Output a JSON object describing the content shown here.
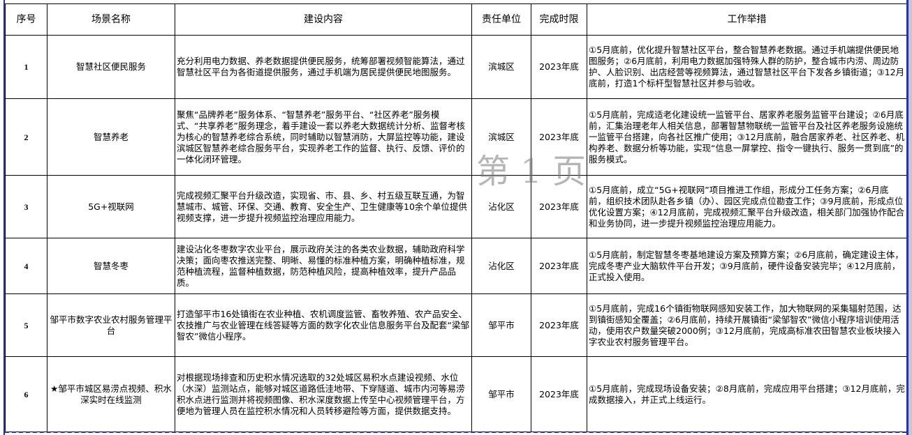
{
  "table": {
    "headers": [
      "序号",
      "场景名称",
      "建设内容",
      "责任单位",
      "完成时限",
      "工作举措"
    ],
    "rows": [
      {
        "no": "1",
        "name": "智慧社区便民服务",
        "content": "充分利用电力数据、养老数据提供便民服务，统筹部署视频智能算法，通过智慧社区平台为各街道提供服务，通过手机端为居民提供便民地图服务。",
        "unit": "滨城区",
        "deadline": "2023年底",
        "measures": "①5月底前，优化提升智慧社区平台，整合智慧养老数据。通过手机端提供便民地图服务；②6月底前，利用电力数据加强特殊人群的防护，整合城市内涝、周边防护、人脸识别、出店经营等视频算法，通过智慧社区平台下发各乡镇街道；③12月底前，打造1个标杆型智慧社区并参与验收。"
      },
      {
        "no": "2",
        "name": "智慧养老",
        "content": "聚焦“品牌养老”服务体系、“智慧养老”服务平台、“社区养老”服务模式、“共享养老”服务理念，着手建设一套以养老大数据统计分析、监督考核为核心的智慧养老综合系统，同时辅助以智慧消防，大屏监控等功能，建设滨城区智慧养老综合服务平台，实现养老工作的监督、执行、反馈、评价的一体化闭环管理。",
        "unit": "滨城区",
        "deadline": "2023年底",
        "measures": "①5月底前，完成适老化建设统一监管平台、居家养老服务监管平台建设；②6月底前，汇集治理老年人相关信息，部署智慧物联统一监管平台及社区养老服务设施统一监管平台搭建，向各社区推广使用；③12月底前，融合居家养老、社区养老、机构养老、数据分析等功能，实现“信息一屏掌控、指令一键执行、服务一贯到底”的服务模式。"
      },
      {
        "no": "3",
        "name": "5G+视联网",
        "content": "完成视频汇聚平台升级改造，实现省、市、县、乡、村五级互联互通，为智慧城市、城管、环保、交通、教育、安全生产、卫生健康等10余个单位提供视频支撑，进一步提升视频监控治理应用能力。",
        "unit": "沾化区",
        "deadline": "2023年底",
        "measures": "①5月底前，成立“5G+视联网”项目推进工作组，形成分工任务方案；②6月底前，组织技术团队赴各乡镇（办）、园区完成点位勘查工作；③9月底前，形成点位优化设置方案；④12月底前，完成视频汇聚平台升级改造，相关部门加强协作配合和业务协同，进一步提升视频监控治理应用能力。"
      },
      {
        "no": "4",
        "name": "智慧冬枣",
        "content": "建设沾化冬枣数字农业平台，展示政府关注的各类农业数据，辅助政府科学决策；面向枣农推送完整、明晰、易懂的标准种植方案，明确种植标准，规范种植流程，监督种植数据，防范种植风险，提高种植效率，提升产品品质。",
        "unit": "沾化区",
        "deadline": "2023年底",
        "measures": "①5月底前，制定智慧冬枣基地建设方案及预算方案；②6月底前，确定建设主体，完成冬枣产业大脑软件平台开发；③9月底前，硬件设备安装完毕；④12月底前，正式投入使用。"
      },
      {
        "no": "5",
        "name": "邹平市数字农业农村服务管理平台",
        "content": "打造邹平市16处镇街在农业种植、农机调度监管、畜牧养殖、农产品安全、农技推广与农业管理在线答疑等方面的数字化农业信息服务平台及配套“梁邹智农”微信小程序。",
        "unit": "邹平市",
        "deadline": "2023年底",
        "measures": "①5月底前，完成16个镇街物联网感知安装工作，加大物联网的采集辐射范围，达到镇街感知全覆盖；②6月底前，持续开展镇街“梁邹智农”微信小程序培训使用活动，使用农户数量突破2000例；③12月底前，完成高标准农田智慧农业板块接入字农业农村服务管理平台。"
      },
      {
        "no": "6",
        "name": "★邹平市城区易涝点视频、积水深实时在线监测",
        "content": "对根据现场排查和历史积水情况选取的32处城区易积水点建设视频、水位（水深）监测站点，能够对城区道路低洼地带、下穿隧道、城市内河等易涝积水点进行监测并将视频图像、积水深度数据上传至中心视频管理平台，方便地为管理人员在监控积水情况和人员转移避险等方面，提供数据支持。",
        "unit": "邹平市",
        "deadline": "2023年底",
        "measures": "①5月底前，完成现场设备安装；②8月底前，完成应用平台搭建；③12月底前，完成数据接入，并正式上线运行。"
      }
    ]
  },
  "watermark": "第 1 页",
  "colors": {
    "page_border": "#1c2fd0",
    "grid": "#000000",
    "watermark": "#808080"
  }
}
